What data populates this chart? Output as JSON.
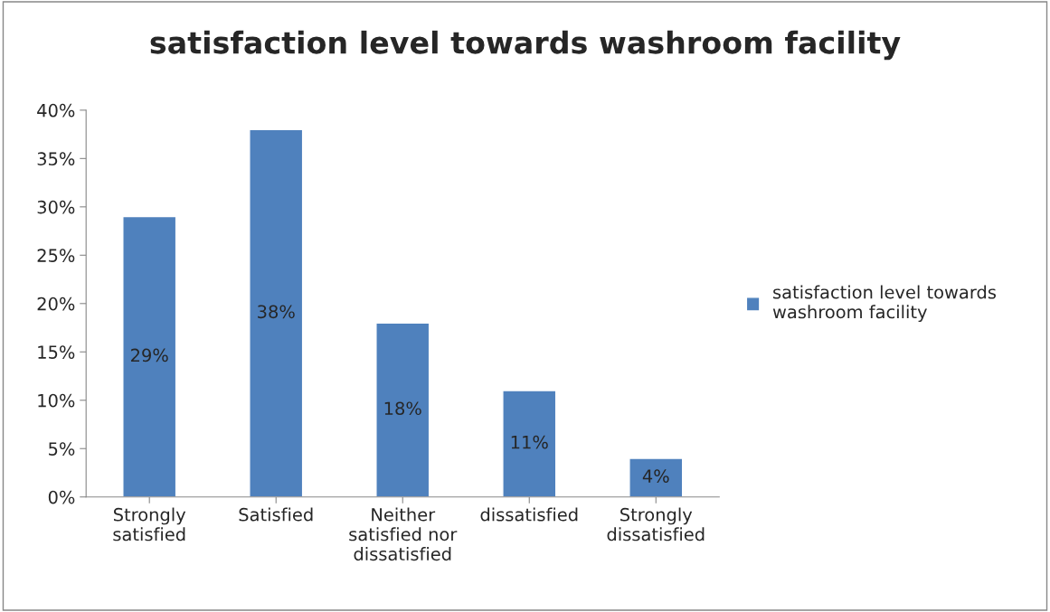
{
  "chart_data": {
    "type": "bar",
    "title": "satisfaction level towards washroom facility",
    "categories": [
      "Strongly\nsatisfied",
      "Satisfied",
      "Neither\nsatisfied nor\ndissatisfied",
      "dissatisfied",
      "Strongly\ndissatisfied"
    ],
    "series": [
      {
        "name": "satisfaction level towards\nwashroom facility",
        "color": "#4f81bd",
        "values": [
          29,
          38,
          18,
          11,
          4
        ],
        "value_labels": [
          "29%",
          "38%",
          "18%",
          "11%",
          "4%"
        ]
      }
    ],
    "ylim": [
      0,
      40
    ],
    "yticks": [
      {
        "value": 0,
        "label": "0%"
      },
      {
        "value": 5,
        "label": "5%"
      },
      {
        "value": 10,
        "label": "10%"
      },
      {
        "value": 15,
        "label": "15%"
      },
      {
        "value": 20,
        "label": "20%"
      },
      {
        "value": 25,
        "label": "25%"
      },
      {
        "value": 30,
        "label": "30%"
      },
      {
        "value": 35,
        "label": "35%"
      },
      {
        "value": 40,
        "label": "40%"
      }
    ],
    "grid": false,
    "legend": "right"
  }
}
